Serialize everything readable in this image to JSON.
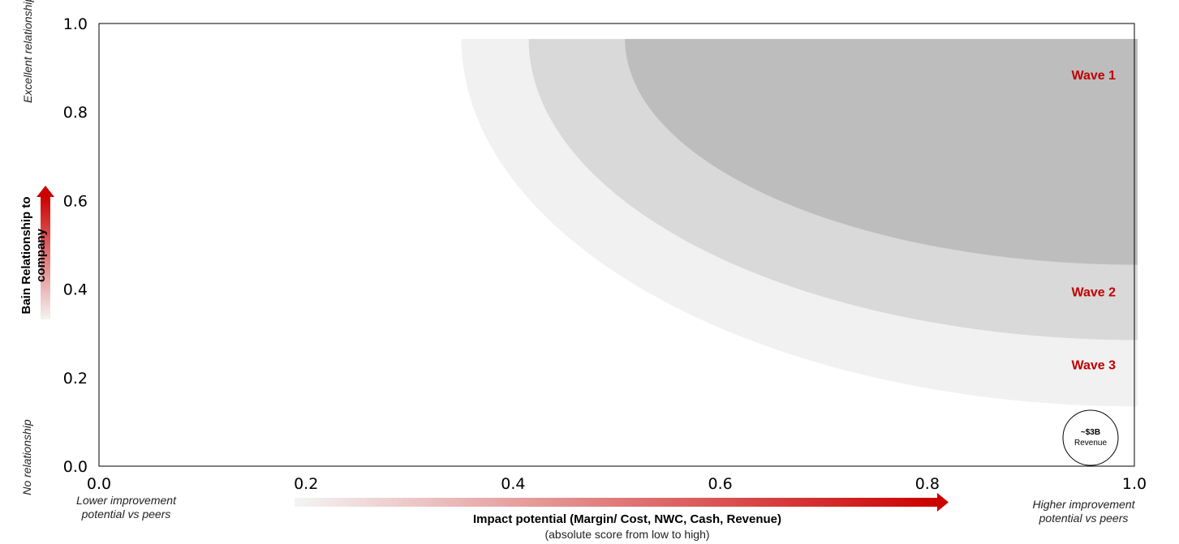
{
  "chart_data": {
    "type": "area",
    "xlim": [
      0.0,
      1.0
    ],
    "ylim": [
      0.0,
      1.0
    ],
    "x_ticks": [
      "0.0",
      "0.2",
      "0.4",
      "0.6",
      "0.8",
      "1.0"
    ],
    "y_ticks": [
      "0.0",
      "0.2",
      "0.4",
      "0.6",
      "0.8",
      "1.0"
    ],
    "grid": false,
    "xlabel": "Impact potential (Margin/ Cost, NWC, Cash, Revenue)",
    "xlabel_sub": "(absolute score from low to high)",
    "ylabel": "Bain Relationship to company",
    "x_low_note": "Lower improvement potential vs peers",
    "x_high_note": "Higher improvement potential vs peers",
    "y_high_note": "Excellent relationship",
    "y_low_note": "No relationship",
    "bands": [
      {
        "label": "Wave 3",
        "x_start": 0.35,
        "y_top": 0.965,
        "y_floor_at_max_x": 0.135,
        "color": "#f1f1f1",
        "label_y": 0.23
      },
      {
        "label": "Wave 2",
        "x_start": 0.415,
        "y_top": 0.965,
        "y_floor_at_max_x": 0.285,
        "color": "#d9d9d9",
        "label_y": 0.395
      },
      {
        "label": "Wave 1",
        "x_start": 0.508,
        "y_top": 0.965,
        "y_floor_at_max_x": 0.455,
        "color": "#bdbdbd",
        "label_y": 0.885
      }
    ],
    "bubble": {
      "label_line1": "~$3B",
      "label_line2": "Revenue"
    },
    "accent_color": "#cc0000"
  }
}
